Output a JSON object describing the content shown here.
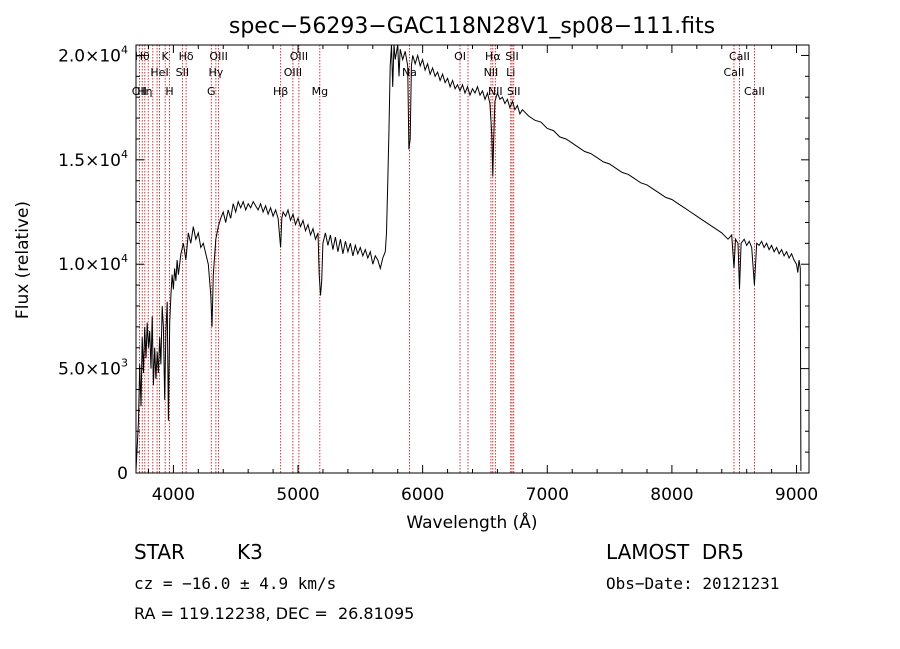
{
  "chart_data": {
    "type": "line",
    "title": "spec−56293−GAC118N28V1_sp08−111.fits",
    "xlabel": "Wavelength (Å)",
    "ylabel": "Flux (relative)",
    "xlim": [
      3700,
      9100
    ],
    "ylim": [
      0,
      20500
    ],
    "x_ticks": [
      4000,
      5000,
      6000,
      7000,
      8000,
      9000
    ],
    "x_tick_labels": [
      "4000",
      "5000",
      "6000",
      "7000",
      "8000",
      "9000"
    ],
    "y_ticks": [
      0,
      5000,
      10000,
      15000,
      20000
    ],
    "y_tick_labels": [
      {
        "mant": "0",
        "exp": ""
      },
      {
        "mant": "5.0×10",
        "exp": "3"
      },
      {
        "mant": "1.0×10",
        "exp": "4"
      },
      {
        "mant": "1.5×10",
        "exp": "4"
      },
      {
        "mant": "2.0×10",
        "exp": "4"
      }
    ],
    "line_color": "#000000",
    "marker_color": "#cc0000",
    "series": [
      {
        "points": [
          [
            3700,
            100
          ],
          [
            3720,
            2500
          ],
          [
            3730,
            5200
          ],
          [
            3740,
            3200
          ],
          [
            3750,
            6500
          ],
          [
            3760,
            4800
          ],
          [
            3770,
            7000
          ],
          [
            3780,
            5500
          ],
          [
            3790,
            7200
          ],
          [
            3800,
            6000
          ],
          [
            3810,
            6800
          ],
          [
            3820,
            5000
          ],
          [
            3830,
            7500
          ],
          [
            3840,
            4200
          ],
          [
            3850,
            6000
          ],
          [
            3860,
            4500
          ],
          [
            3870,
            5800
          ],
          [
            3880,
            4800
          ],
          [
            3890,
            6500
          ],
          [
            3900,
            5200
          ],
          [
            3910,
            8000
          ],
          [
            3920,
            7000
          ],
          [
            3930,
            3500
          ],
          [
            3940,
            6800
          ],
          [
            3950,
            8200
          ],
          [
            3960,
            2500
          ],
          [
            3970,
            7200
          ],
          [
            3980,
            8500
          ],
          [
            3990,
            9500
          ],
          [
            4000,
            8800
          ],
          [
            4010,
            9800
          ],
          [
            4020,
            9200
          ],
          [
            4030,
            10200
          ],
          [
            4040,
            9500
          ],
          [
            4060,
            10500
          ],
          [
            4080,
            11000
          ],
          [
            4100,
            10200
          ],
          [
            4120,
            11500
          ],
          [
            4140,
            11000
          ],
          [
            4160,
            11800
          ],
          [
            4180,
            11200
          ],
          [
            4200,
            11500
          ],
          [
            4220,
            10800
          ],
          [
            4240,
            11000
          ],
          [
            4260,
            10500
          ],
          [
            4280,
            10000
          ],
          [
            4300,
            8500
          ],
          [
            4310,
            7000
          ],
          [
            4320,
            9500
          ],
          [
            4340,
            11200
          ],
          [
            4360,
            11800
          ],
          [
            4380,
            12200
          ],
          [
            4400,
            12500
          ],
          [
            4420,
            12000
          ],
          [
            4440,
            12600
          ],
          [
            4460,
            12200
          ],
          [
            4480,
            12900
          ],
          [
            4500,
            12500
          ],
          [
            4520,
            13000
          ],
          [
            4540,
            12700
          ],
          [
            4560,
            13000
          ],
          [
            4580,
            12600
          ],
          [
            4600,
            12900
          ],
          [
            4620,
            12700
          ],
          [
            4640,
            13000
          ],
          [
            4660,
            12800
          ],
          [
            4680,
            12600
          ],
          [
            4700,
            12900
          ],
          [
            4720,
            12500
          ],
          [
            4740,
            12800
          ],
          [
            4760,
            12400
          ],
          [
            4780,
            12700
          ],
          [
            4800,
            12300
          ],
          [
            4820,
            12600
          ],
          [
            4840,
            12200
          ],
          [
            4860,
            10800
          ],
          [
            4870,
            12200
          ],
          [
            4880,
            12500
          ],
          [
            4900,
            12300
          ],
          [
            4920,
            12600
          ],
          [
            4940,
            12100
          ],
          [
            4960,
            12400
          ],
          [
            4980,
            11900
          ],
          [
            5000,
            12200
          ],
          [
            5020,
            11800
          ],
          [
            5040,
            12100
          ],
          [
            5060,
            11600
          ],
          [
            5080,
            11900
          ],
          [
            5100,
            11400
          ],
          [
            5120,
            11700
          ],
          [
            5140,
            11200
          ],
          [
            5160,
            11500
          ],
          [
            5170,
            9500
          ],
          [
            5180,
            8500
          ],
          [
            5190,
            9200
          ],
          [
            5200,
            11000
          ],
          [
            5220,
            11500
          ],
          [
            5240,
            10900
          ],
          [
            5260,
            11400
          ],
          [
            5280,
            10700
          ],
          [
            5300,
            11300
          ],
          [
            5320,
            10600
          ],
          [
            5340,
            11200
          ],
          [
            5360,
            10500
          ],
          [
            5380,
            11100
          ],
          [
            5400,
            10600
          ],
          [
            5420,
            11000
          ],
          [
            5440,
            10400
          ],
          [
            5460,
            10900
          ],
          [
            5480,
            10500
          ],
          [
            5500,
            10800
          ],
          [
            5520,
            10400
          ],
          [
            5540,
            10700
          ],
          [
            5560,
            10300
          ],
          [
            5580,
            10600
          ],
          [
            5600,
            10000
          ],
          [
            5620,
            10400
          ],
          [
            5640,
            10200
          ],
          [
            5660,
            9800
          ],
          [
            5680,
            10300
          ],
          [
            5700,
            10600
          ],
          [
            5710,
            11500
          ],
          [
            5720,
            14000
          ],
          [
            5730,
            16500
          ],
          [
            5740,
            19500
          ],
          [
            5750,
            20500
          ],
          [
            5760,
            18500
          ],
          [
            5770,
            20500
          ],
          [
            5780,
            19800
          ],
          [
            5800,
            20500
          ],
          [
            5810,
            19000
          ],
          [
            5820,
            20300
          ],
          [
            5840,
            19800
          ],
          [
            5860,
            20200
          ],
          [
            5880,
            19500
          ],
          [
            5890,
            15500
          ],
          [
            5900,
            16000
          ],
          [
            5910,
            19500
          ],
          [
            5920,
            20000
          ],
          [
            5940,
            19600
          ],
          [
            5960,
            20000
          ],
          [
            5980,
            19500
          ],
          [
            6000,
            19800
          ],
          [
            6020,
            19300
          ],
          [
            6040,
            19600
          ],
          [
            6060,
            19100
          ],
          [
            6080,
            19400
          ],
          [
            6100,
            19000
          ],
          [
            6120,
            19200
          ],
          [
            6140,
            18800
          ],
          [
            6160,
            19100
          ],
          [
            6180,
            18700
          ],
          [
            6200,
            18900
          ],
          [
            6220,
            18500
          ],
          [
            6240,
            18800
          ],
          [
            6260,
            18400
          ],
          [
            6280,
            18600
          ],
          [
            6300,
            18300
          ],
          [
            6320,
            18600
          ],
          [
            6340,
            18200
          ],
          [
            6360,
            18500
          ],
          [
            6380,
            18100
          ],
          [
            6400,
            18400
          ],
          [
            6420,
            18200
          ],
          [
            6440,
            18500
          ],
          [
            6460,
            18100
          ],
          [
            6480,
            18300
          ],
          [
            6500,
            17900
          ],
          [
            6520,
            18200
          ],
          [
            6540,
            17700
          ],
          [
            6555,
            16200
          ],
          [
            6563,
            14200
          ],
          [
            6570,
            16000
          ],
          [
            6580,
            17800
          ],
          [
            6600,
            18200
          ],
          [
            6620,
            17900
          ],
          [
            6640,
            18000
          ],
          [
            6660,
            17700
          ],
          [
            6680,
            17900
          ],
          [
            6700,
            17500
          ],
          [
            6720,
            17800
          ],
          [
            6740,
            17400
          ],
          [
            6760,
            17600
          ],
          [
            6780,
            17200
          ],
          [
            6800,
            17400
          ],
          [
            6850,
            17100
          ],
          [
            6900,
            16900
          ],
          [
            6950,
            16800
          ],
          [
            7000,
            16500
          ],
          [
            7050,
            16400
          ],
          [
            7100,
            16100
          ],
          [
            7150,
            16000
          ],
          [
            7200,
            15800
          ],
          [
            7250,
            15600
          ],
          [
            7300,
            15400
          ],
          [
            7350,
            15300
          ],
          [
            7400,
            15100
          ],
          [
            7450,
            14900
          ],
          [
            7500,
            14800
          ],
          [
            7550,
            14600
          ],
          [
            7600,
            14400
          ],
          [
            7650,
            14300
          ],
          [
            7700,
            14100
          ],
          [
            7750,
            13900
          ],
          [
            7800,
            13800
          ],
          [
            7850,
            13600
          ],
          [
            7900,
            13400
          ],
          [
            7950,
            13200
          ],
          [
            8000,
            13100
          ],
          [
            8050,
            12900
          ],
          [
            8100,
            12700
          ],
          [
            8150,
            12500
          ],
          [
            8200,
            12300
          ],
          [
            8250,
            12100
          ],
          [
            8300,
            11900
          ],
          [
            8350,
            11700
          ],
          [
            8400,
            11500
          ],
          [
            8450,
            11200
          ],
          [
            8480,
            11400
          ],
          [
            8498,
            9800
          ],
          [
            8510,
            11200
          ],
          [
            8530,
            11000
          ],
          [
            8542,
            8800
          ],
          [
            8555,
            11000
          ],
          [
            8580,
            11200
          ],
          [
            8600,
            10900
          ],
          [
            8620,
            11100
          ],
          [
            8640,
            10800
          ],
          [
            8662,
            9000
          ],
          [
            8680,
            11000
          ],
          [
            8700,
            10900
          ],
          [
            8720,
            11100
          ],
          [
            8740,
            10800
          ],
          [
            8760,
            11000
          ],
          [
            8780,
            10700
          ],
          [
            8800,
            10900
          ],
          [
            8820,
            10600
          ],
          [
            8840,
            10800
          ],
          [
            8860,
            10500
          ],
          [
            8880,
            10700
          ],
          [
            8900,
            10400
          ],
          [
            8920,
            10600
          ],
          [
            8940,
            10300
          ],
          [
            8960,
            10500
          ],
          [
            8980,
            10200
          ],
          [
            9000,
            10000
          ],
          [
            9010,
            9600
          ],
          [
            9020,
            10200
          ],
          [
            9030,
            9800
          ],
          [
            9035,
            100
          ]
        ]
      }
    ],
    "lines": [
      {
        "w": 3727,
        "label": "OII",
        "row": 2
      },
      {
        "w": 3750,
        "label": "Hθ",
        "row": 0
      },
      {
        "w": 3771,
        "label": "Hη",
        "row": 2
      },
      {
        "w": 3798,
        "label": "",
        "row": -1
      },
      {
        "w": 3835,
        "label": "",
        "row": -1
      },
      {
        "w": 3869,
        "label": "",
        "row": -1
      },
      {
        "w": 3889,
        "label": "HeI",
        "row": 1
      },
      {
        "w": 3934,
        "label": "K",
        "row": 0
      },
      {
        "w": 3969,
        "label": "H",
        "row": 2
      },
      {
        "w": 4072,
        "label": "SII",
        "row": 1
      },
      {
        "w": 4102,
        "label": "Hδ",
        "row": 0
      },
      {
        "w": 4304,
        "label": "G",
        "row": 2
      },
      {
        "w": 4341,
        "label": "Hγ",
        "row": 1
      },
      {
        "w": 4363,
        "label": "OIII",
        "row": 0
      },
      {
        "w": 4861,
        "label": "Hβ",
        "row": 2
      },
      {
        "w": 4959,
        "label": "OIII",
        "row": 1
      },
      {
        "w": 5007,
        "label": "OIII",
        "row": 0
      },
      {
        "w": 5175,
        "label": "Mg",
        "row": 2
      },
      {
        "w": 5894,
        "label": "Na",
        "row": 1
      },
      {
        "w": 6300,
        "label": "OI",
        "row": 0
      },
      {
        "w": 6364,
        "label": "",
        "row": -1
      },
      {
        "w": 6548,
        "label": "NII",
        "row": 1
      },
      {
        "w": 6563,
        "label": "Hα",
        "row": 0
      },
      {
        "w": 6583,
        "label": "NII",
        "row": 2
      },
      {
        "w": 6707,
        "label": "Li",
        "row": 1
      },
      {
        "w": 6717,
        "label": "SII",
        "row": 0
      },
      {
        "w": 6731,
        "label": "SII",
        "row": 2
      },
      {
        "w": 8498,
        "label": "CaII",
        "row": 1
      },
      {
        "w": 8542,
        "label": "CaII",
        "row": 0
      },
      {
        "w": 8662,
        "label": "CaII",
        "row": 2
      }
    ]
  },
  "info": {
    "object_class": "STAR",
    "subclass": "K3",
    "survey": "LAMOST  DR5",
    "redshift": "cz = −16.0 ± 4.9 km/s",
    "obs_date": "Obs−Date: 20121231",
    "coords": "RA = 119.12238, DEC =  26.81095"
  }
}
